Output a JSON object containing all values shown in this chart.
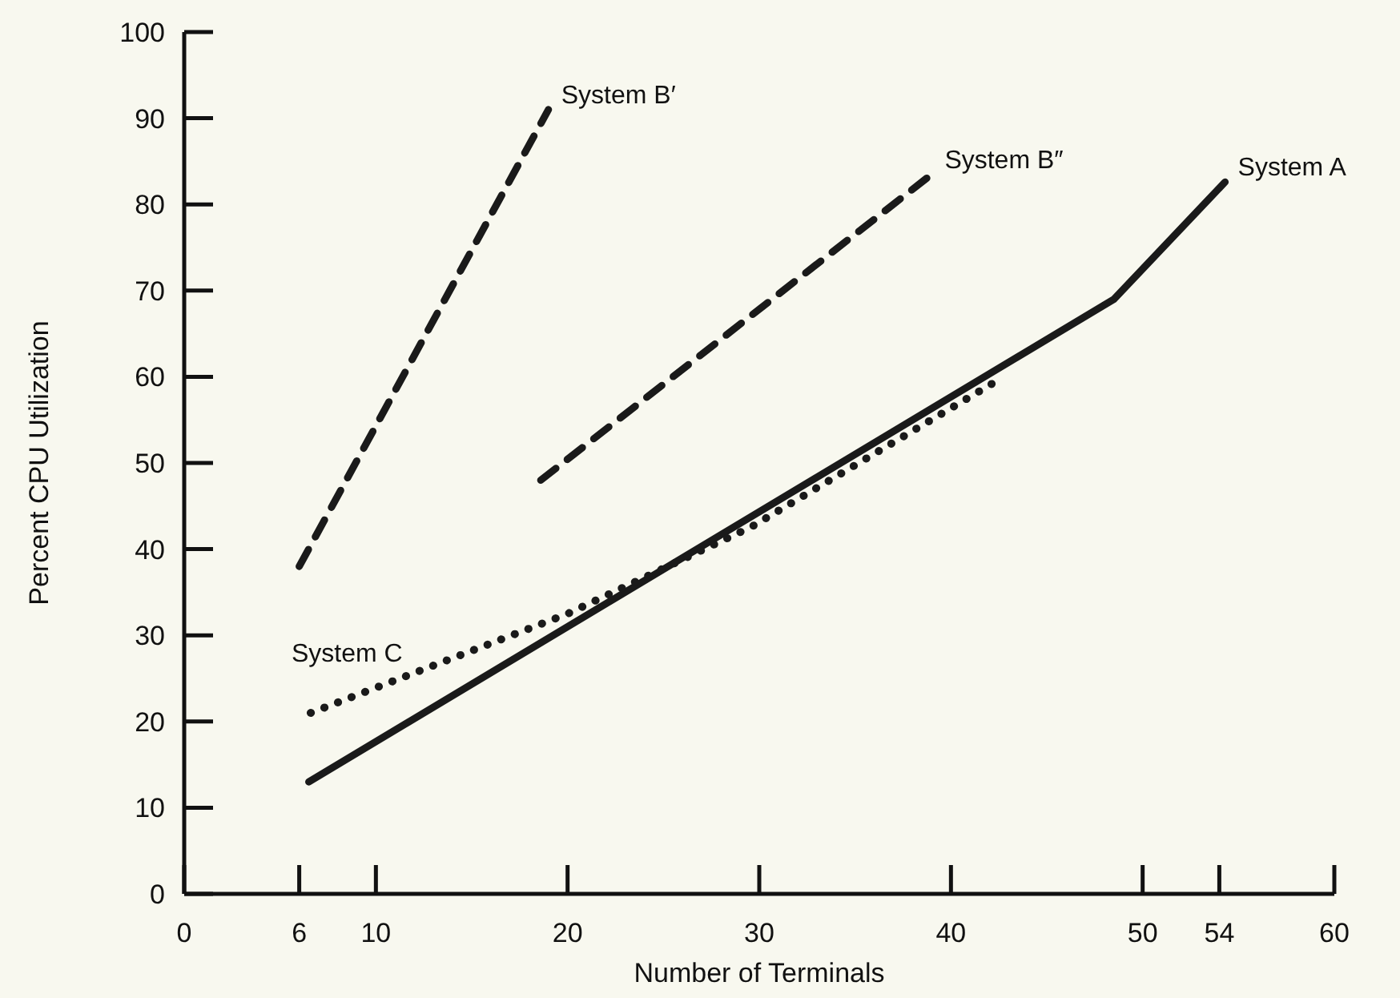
{
  "chart_data": {
    "type": "line",
    "xlabel": "Number of Terminals",
    "ylabel": "Percent CPU Utilization",
    "xlim": [
      0,
      60
    ],
    "xticks": [
      0,
      6,
      10,
      20,
      30,
      40,
      50,
      54,
      60
    ],
    "ylim": [
      0,
      100
    ],
    "yticks": [
      0,
      10,
      20,
      30,
      40,
      50,
      60,
      70,
      80,
      90,
      100
    ],
    "marker": "none",
    "series": [
      {
        "name": "System B′",
        "color": "#1a1a1a",
        "line_style": "dashed",
        "x": [
          6,
          19
        ],
        "values": [
          38,
          91
        ]
      },
      {
        "name": "System B″",
        "color": "#1a1a1a",
        "line_style": "dashed",
        "x": [
          18.6,
          39
        ],
        "values": [
          48,
          83.5
        ]
      },
      {
        "name": "System A",
        "color": "#1a1a1a",
        "line_style": "solid",
        "x": [
          6.5,
          48.5,
          54.3
        ],
        "values": [
          13,
          69,
          82.6
        ]
      },
      {
        "name": "System C",
        "color": "#1a1a1a",
        "line_style": "dotted",
        "x": [
          6.6,
          20,
          29.6,
          42.3
        ],
        "values": [
          21,
          32.5,
          42.6,
          59.4
        ]
      }
    ]
  }
}
